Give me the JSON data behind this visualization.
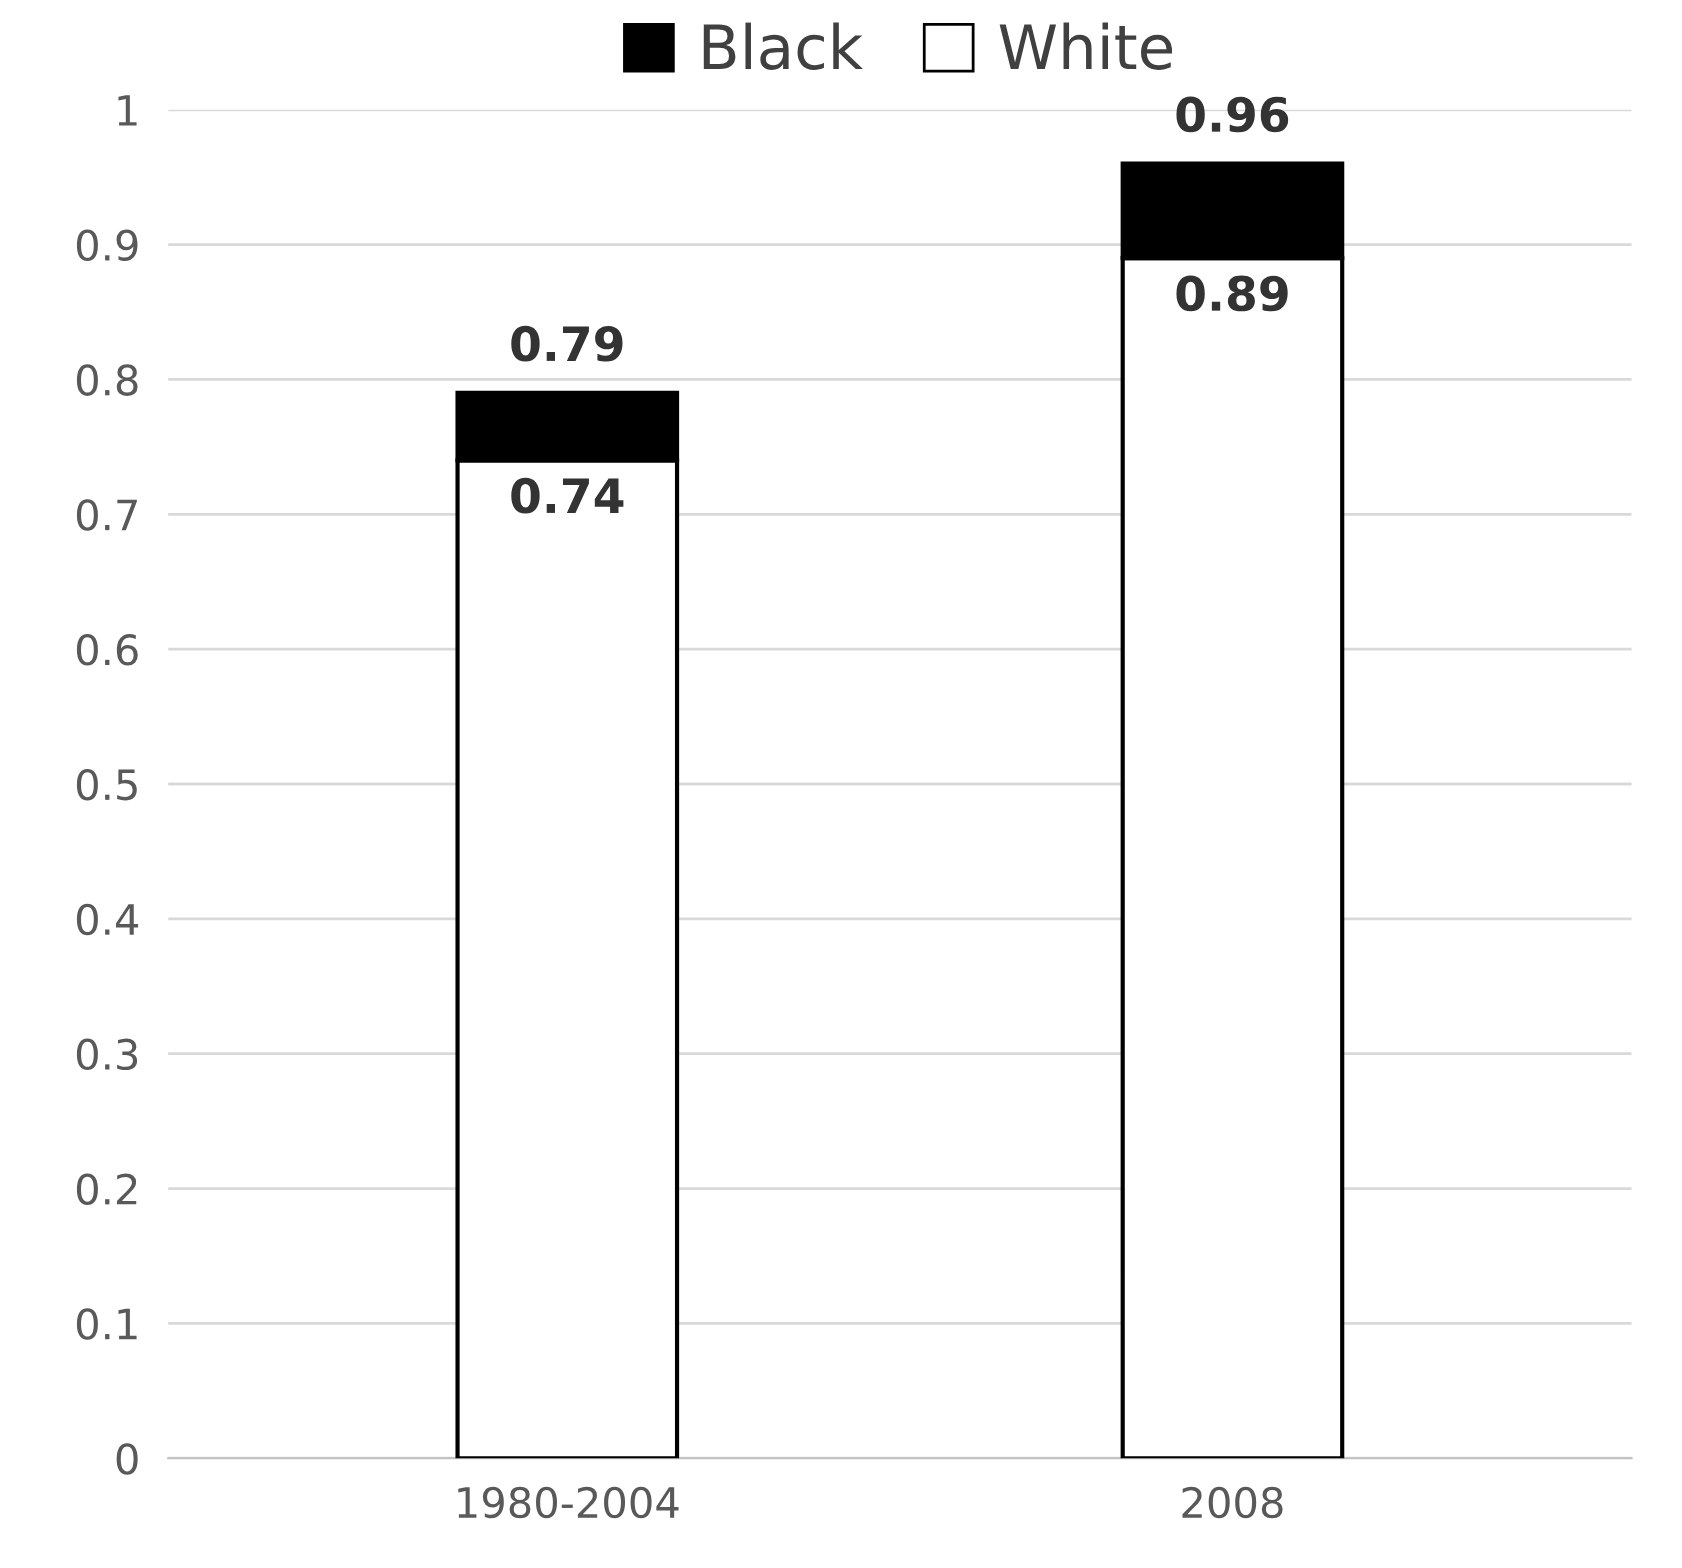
{
  "chart_data": {
    "type": "bar",
    "stacked": true,
    "categories": [
      "1980-2004",
      "2008"
    ],
    "series": [
      {
        "name": "White",
        "color": "#ffffff",
        "values": [
          0.74,
          0.89
        ],
        "value_labels": [
          "0.74",
          "0.89"
        ]
      },
      {
        "name": "Black",
        "color": "#000000",
        "values": [
          0.05,
          0.07
        ]
      }
    ],
    "totals": [
      "0.79",
      "0.96"
    ],
    "ylim": [
      0,
      1
    ],
    "yticks": [
      0,
      0.1,
      0.2,
      0.3,
      0.4,
      0.5,
      0.6,
      0.7,
      0.8,
      0.9,
      1
    ],
    "grid": "y",
    "legend": "top"
  }
}
